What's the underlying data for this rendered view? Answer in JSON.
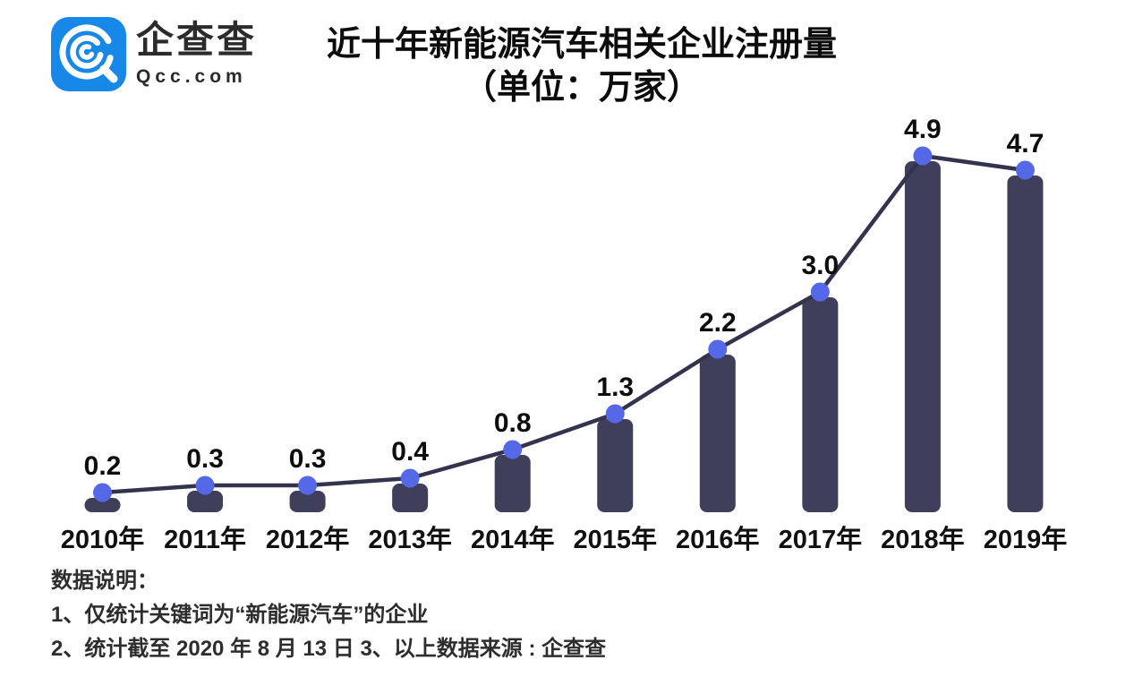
{
  "logo": {
    "brand": "企查查",
    "domain": "Qcc.com",
    "icon": "qcc-magnifier-icon",
    "badge_color": "#1787e8"
  },
  "title": {
    "line1": "近十年新能源汽车相关企业注册量",
    "line2": "（单位：万家）"
  },
  "chart_data": {
    "type": "bar",
    "overlay": "line-with-markers",
    "title": "近十年新能源汽车相关企业注册量",
    "subtitle": "（单位：万家）",
    "unit": "万家",
    "categories": [
      "2010年",
      "2011年",
      "2012年",
      "2013年",
      "2014年",
      "2015年",
      "2016年",
      "2017年",
      "2018年",
      "2019年"
    ],
    "values": [
      0.2,
      0.3,
      0.3,
      0.4,
      0.8,
      1.3,
      2.2,
      3.0,
      4.9,
      4.7
    ],
    "value_labels": [
      "0.2",
      "0.3",
      "0.3",
      "0.4",
      "0.8",
      "1.3",
      "2.2",
      "3.0",
      "4.9",
      "4.7"
    ],
    "xlabel": "",
    "ylabel": "",
    "ylim": [
      0,
      5
    ],
    "grid": false,
    "axes_hidden": true,
    "legend": "none",
    "colors": {
      "bar": "#3f3f5b",
      "line": "#33334d",
      "marker": "#5569e8",
      "value_label": "#0d0d0d",
      "axis_label": "#111111"
    }
  },
  "notes": {
    "heading": "数据说明：",
    "items": [
      "1、仅统计关键词为“新能源汽车”的企业",
      "2、统计截至 2020 年 8 月 13 日  3、以上数据来源 : 企查查"
    ]
  }
}
